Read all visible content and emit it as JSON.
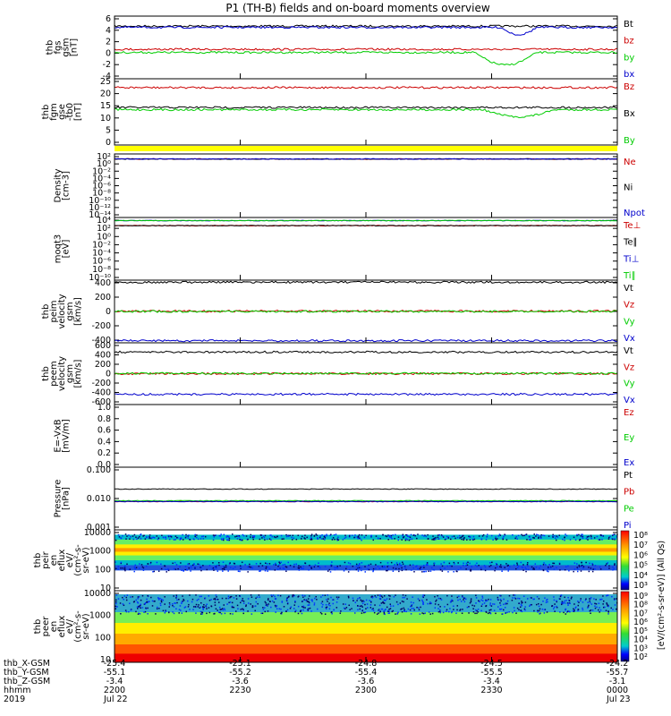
{
  "title": "P1 (TH-B) fields and on-board moments overview",
  "chart_data": [
    {
      "type": "line",
      "ylabel": [
        "thb",
        "fgs",
        "gsm",
        "[nT]"
      ],
      "ylim": [
        -4,
        6
      ],
      "yticks": [
        "6",
        "4",
        "2",
        "0",
        "-2",
        "-4"
      ],
      "series": [
        {
          "name": "Bt",
          "color": "#000000",
          "level": 4.4
        },
        {
          "name": "bz",
          "color": "#cc0000",
          "level": 0.7
        },
        {
          "name": "by",
          "color": "#00cc00",
          "level": 0.2
        },
        {
          "name": "bx",
          "color": "#0000cc",
          "level": 4.2
        }
      ]
    },
    {
      "type": "line",
      "ylabel": [
        "thb",
        "fgm",
        "gse",
        "-tb0",
        "[nT]"
      ],
      "ylim": [
        -5,
        25
      ],
      "yticks": [
        "25",
        "20",
        "15",
        "10",
        "5",
        "0"
      ],
      "series": [
        {
          "name": "Bz",
          "color": "#cc0000",
          "level": 21
        },
        {
          "name": "Bx",
          "color": "#000000",
          "level": 12
        },
        {
          "name": "By",
          "color": "#00cc00",
          "level": 11
        }
      ]
    },
    {
      "type": "line",
      "ylabel": [
        "Density",
        "[cm-3]"
      ],
      "yscale": "log",
      "ylim": [
        "10⁻¹⁴",
        "10²"
      ],
      "yticks": [
        "10²",
        "10⁰",
        "10⁻²",
        "10⁻⁴",
        "10⁻⁶",
        "10⁻⁸",
        "10⁻¹⁰",
        "10⁻¹²",
        "10⁻¹⁴"
      ],
      "series": [
        {
          "name": "Ne",
          "color": "#cc0000",
          "level": "10⁰"
        },
        {
          "name": "Ni",
          "color": "#000000",
          "level": "10⁰"
        },
        {
          "name": "Npot",
          "color": "#0000cc",
          "level": "10⁰"
        }
      ]
    },
    {
      "type": "line",
      "ylabel": [
        "moqt3",
        "[eV]"
      ],
      "yscale": "log",
      "ylim": [
        "10⁻¹⁰",
        "10⁴"
      ],
      "yticks": [
        "10⁴",
        "10²",
        "10⁰",
        "10⁻²",
        "10⁻⁴",
        "10⁻⁶",
        "10⁻⁸",
        "10⁻¹⁰"
      ],
      "series": [
        {
          "name": "Te⊥",
          "color": "#cc0000",
          "level": "10¹"
        },
        {
          "name": "Te∥",
          "color": "#000000",
          "level": "10¹"
        },
        {
          "name": "Ti⊥",
          "color": "#0000cc",
          "level": "10²"
        },
        {
          "name": "Ti∥",
          "color": "#00cc00",
          "level": "10²"
        }
      ]
    },
    {
      "type": "line",
      "ylabel": [
        "thb",
        "peim",
        "velocity",
        "gsm",
        "[km/s]"
      ],
      "ylim": [
        -450,
        450
      ],
      "yticks": [
        "400",
        "200",
        "0",
        "-200",
        "-400"
      ],
      "series": [
        {
          "name": "Vt",
          "color": "#000000",
          "level": 420
        },
        {
          "name": "Vz",
          "color": "#cc0000",
          "level": 5
        },
        {
          "name": "Vy",
          "color": "#00cc00",
          "level": 0
        },
        {
          "name": "Vx",
          "color": "#0000cc",
          "level": -420
        }
      ]
    },
    {
      "type": "line",
      "ylabel": [
        "thb",
        "peem",
        "velocity",
        "gsm",
        "[km/s]"
      ],
      "ylim": [
        -600,
        600
      ],
      "yticks": [
        "600",
        "400",
        "200",
        "0",
        "-200",
        "-400",
        "-600"
      ],
      "series": [
        {
          "name": "Vt",
          "color": "#000000",
          "level": 420
        },
        {
          "name": "Vz",
          "color": "#cc0000",
          "level": 0
        },
        {
          "name": "Vy",
          "color": "#00cc00",
          "level": 5
        },
        {
          "name": "Vx",
          "color": "#0000cc",
          "level": -400
        }
      ]
    },
    {
      "type": "line",
      "ylabel": [
        "E=-VxB",
        "[mV/m]"
      ],
      "ylim": [
        0,
        1
      ],
      "yticks": [
        "1.0",
        "0.8",
        "0.6",
        "0.4",
        "0.2",
        "0.0"
      ],
      "series": [
        {
          "name": "Ez",
          "color": "#cc0000"
        },
        {
          "name": "Ey",
          "color": "#00cc00"
        },
        {
          "name": "Ex",
          "color": "#0000cc"
        }
      ]
    },
    {
      "type": "line",
      "ylabel": [
        "Pressure",
        "[nPa]"
      ],
      "yscale": "log",
      "ylim": [
        0.001,
        0.1
      ],
      "yticks": [
        "0.100",
        "0.010",
        "0.001"
      ],
      "series": [
        {
          "name": "Pt",
          "color": "#000000",
          "level": 0.02
        },
        {
          "name": "Pb",
          "color": "#cc0000",
          "level": 0.008
        },
        {
          "name": "Pe",
          "color": "#00cc00",
          "level": 0.0085
        },
        {
          "name": "Pi",
          "color": "#0000cc",
          "level": 0.008
        }
      ]
    },
    {
      "type": "heatmap",
      "ylabel": [
        "thb",
        "peir",
        "en",
        "eflux",
        "eV/",
        "(cm²-s-",
        "sr-eV)"
      ],
      "yscale": "log",
      "yticks": [
        "10000",
        "1000",
        "100",
        "10"
      ],
      "colorbar_ticks": [
        "10⁸",
        "10⁷",
        "10⁶",
        "10⁵",
        "10⁴",
        "10³"
      ],
      "colorbar_label": "[eV/(cm²-s-sr-eV)] (All Qs)"
    },
    {
      "type": "heatmap",
      "ylabel": [
        "thb",
        "peer",
        "en",
        "eflux",
        "eV/",
        "(cm²-s-",
        "sr-eV)"
      ],
      "yscale": "log",
      "yticks": [
        "10000",
        "1000",
        "100",
        "10"
      ],
      "colorbar_ticks": [
        "10⁹",
        "10⁸",
        "10⁷",
        "10⁶",
        "10⁵",
        "10⁴",
        "10³",
        "10²"
      ],
      "colorbar_label": "[eV/(cm²-s-sr-eV)] (All Qs)"
    }
  ],
  "x_axis": {
    "row_labels": [
      "thb_X-GSM",
      "thb_Y-GSM",
      "thb_Z-GSM",
      "hhmm",
      "2019"
    ],
    "columns": [
      {
        "x": "-25.4",
        "y": "-55.1",
        "z": "-3.4",
        "hhmm": "2200",
        "date": "Jul 22"
      },
      {
        "x": "-25.1",
        "y": "-55.2",
        "z": "-3.6",
        "hhmm": "2230",
        "date": ""
      },
      {
        "x": "-24.8",
        "y": "-55.4",
        "z": "-3.6",
        "hhmm": "2300",
        "date": ""
      },
      {
        "x": "-24.5",
        "y": "-55.5",
        "z": "-3.4",
        "hhmm": "2330",
        "date": ""
      },
      {
        "x": "-24.2",
        "y": "-55.7",
        "z": "-3.1",
        "hhmm": "0000",
        "date": "Jul 23"
      }
    ]
  }
}
